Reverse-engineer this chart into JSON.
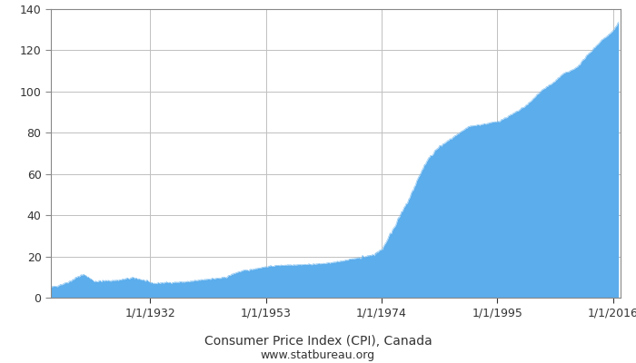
{
  "title": "Consumer Price Index (CPI), Canada",
  "subtitle": "www.statbureau.org",
  "fill_color": "#5badec",
  "line_color": "#5badec",
  "background_color": "#ffffff",
  "grid_color": "#c0c0c0",
  "text_color": "#333333",
  "ylim": [
    0,
    140
  ],
  "yticks": [
    0,
    20,
    40,
    60,
    80,
    100,
    120,
    140
  ],
  "xtick_labels": [
    "1/1/1932",
    "1/1/1953",
    "1/1/1974",
    "1/1/1995",
    "1/1/2016"
  ],
  "xtick_years": [
    1932,
    1953,
    1974,
    1995,
    2016
  ],
  "start_year": 1914,
  "end_year": 2017,
  "title_fontsize": 10,
  "subtitle_fontsize": 9,
  "tick_fontsize": 9,
  "axis_color": "#888888",
  "keypoints": [
    [
      1914,
      5.0
    ],
    [
      1917,
      7.5
    ],
    [
      1920,
      11.0
    ],
    [
      1921,
      9.5
    ],
    [
      1922,
      8.0
    ],
    [
      1926,
      8.5
    ],
    [
      1929,
      9.5
    ],
    [
      1933,
      7.0
    ],
    [
      1934,
      7.2
    ],
    [
      1939,
      7.8
    ],
    [
      1941,
      8.5
    ],
    [
      1943,
      9.2
    ],
    [
      1945,
      9.5
    ],
    [
      1948,
      12.5
    ],
    [
      1950,
      13.5
    ],
    [
      1953,
      15.0
    ],
    [
      1956,
      15.8
    ],
    [
      1961,
      16.2
    ],
    [
      1965,
      17.0
    ],
    [
      1968,
      18.5
    ],
    [
      1970,
      19.5
    ],
    [
      1972,
      20.5
    ],
    [
      1974,
      23.5
    ],
    [
      1975,
      28.0
    ],
    [
      1977,
      38.0
    ],
    [
      1979,
      48.0
    ],
    [
      1981,
      60.0
    ],
    [
      1982,
      65.0
    ],
    [
      1984,
      72.0
    ],
    [
      1986,
      76.0
    ],
    [
      1988,
      79.5
    ],
    [
      1990,
      83.0
    ],
    [
      1992,
      84.0
    ],
    [
      1995,
      85.5
    ],
    [
      1997,
      88.0
    ],
    [
      1999,
      91.0
    ],
    [
      2001,
      95.0
    ],
    [
      2003,
      100.5
    ],
    [
      2005,
      104.0
    ],
    [
      2007,
      108.5
    ],
    [
      2009,
      111.0
    ],
    [
      2011,
      116.5
    ],
    [
      2012,
      119.5
    ],
    [
      2014,
      125.0
    ],
    [
      2016,
      129.5
    ],
    [
      2017,
      133.5
    ]
  ]
}
